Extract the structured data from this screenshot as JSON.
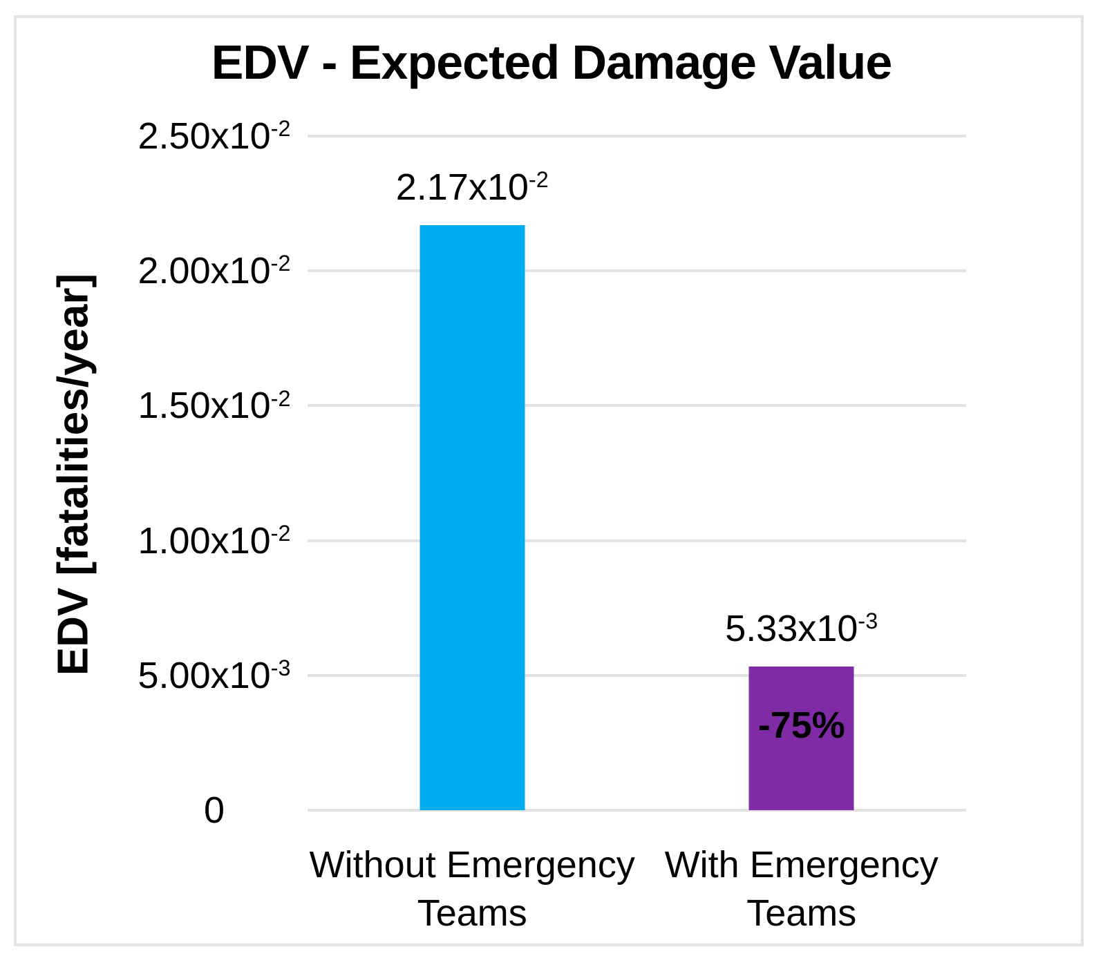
{
  "title": "EDV - Expected Damage Value",
  "y_axis_title": "EDV [fatalities/year]",
  "chart_data": {
    "type": "bar",
    "title": "EDV - Expected Damage Value",
    "xlabel": "",
    "ylabel": "EDV [fatalities/year]",
    "categories": [
      "Without Emergency Teams",
      "With Emergency Teams"
    ],
    "values": [
      0.0217,
      0.00533
    ],
    "bar_labels": [
      {
        "m": "2.17x10",
        "s": "-2"
      },
      {
        "m": "5.33x10",
        "s": "-3"
      }
    ],
    "annotation": "-75%",
    "annotation_bar_index": 1,
    "bar_colors": [
      "#00AEEF",
      "#7F2BA5"
    ],
    "ylim": [
      0,
      0.025
    ],
    "yticks": [
      {
        "value": 0.025,
        "m": "2.50x10",
        "s": "-2"
      },
      {
        "value": 0.02,
        "m": "2.00x10",
        "s": "-2"
      },
      {
        "value": 0.015,
        "m": "1.50x10",
        "s": "-2"
      },
      {
        "value": 0.01,
        "m": "1.00x10",
        "s": "-2"
      },
      {
        "value": 0.005,
        "m": "5.00x10",
        "s": "-3"
      },
      {
        "value": 0,
        "m": "0",
        "s": ""
      }
    ],
    "grid": true,
    "gridline_color": "#E2E2E2",
    "legend": "none",
    "background": "#FFFFFF",
    "border_color": "#E3E3E3"
  }
}
